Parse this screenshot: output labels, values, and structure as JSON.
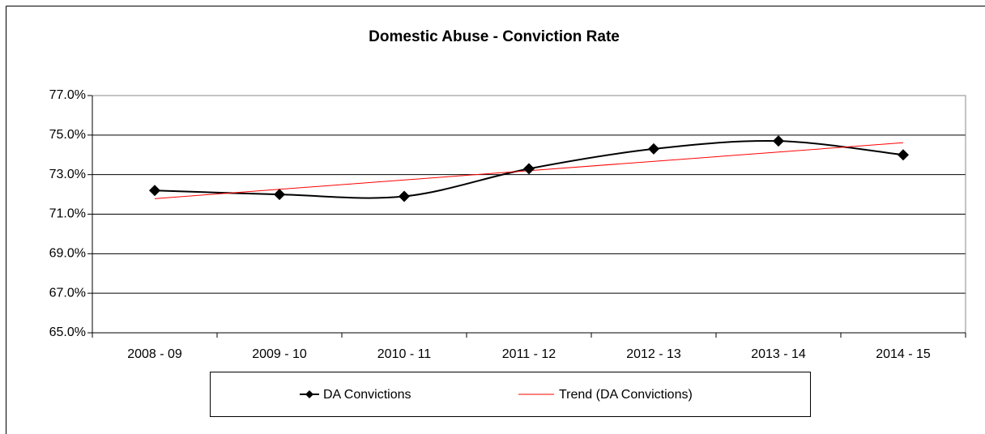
{
  "chart_data": {
    "type": "line",
    "title": "Domestic Abuse - Conviction Rate",
    "categories": [
      "2008 - 09",
      "2009 - 10",
      "2010 - 11",
      "2011 - 12",
      "2012 - 13",
      "2013 - 14",
      "2014 - 15"
    ],
    "series": [
      {
        "name": "DA Convictions",
        "color": "#000000",
        "values": [
          72.2,
          72.0,
          71.9,
          73.3,
          74.3,
          74.7,
          74.0
        ]
      }
    ],
    "trendline": {
      "name": "Trend (DA Convictions)",
      "color": "#ff0000",
      "kind": "linear"
    },
    "smooth": true,
    "ylim": [
      65,
      77
    ],
    "yticks": [
      {
        "value": 65,
        "label": "65.0%"
      },
      {
        "value": 67,
        "label": "67.0%"
      },
      {
        "value": 69,
        "label": "69.0%"
      },
      {
        "value": 71,
        "label": "71.0%"
      },
      {
        "value": 73,
        "label": "73.0%"
      },
      {
        "value": 75,
        "label": "75.0%"
      },
      {
        "value": 77,
        "label": "77.0%"
      }
    ],
    "grid": true,
    "legend": "bottom"
  }
}
